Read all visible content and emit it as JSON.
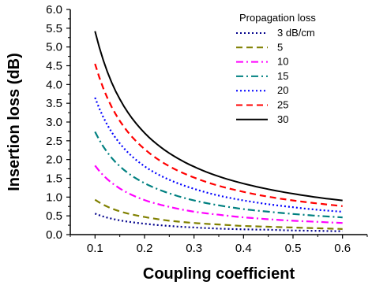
{
  "chart_data": {
    "type": "line",
    "xlabel": "Coupling coefficient",
    "ylabel": "Insertion loss (dB)",
    "xlim": [
      0.05,
      0.65
    ],
    "ylim": [
      0.0,
      6.0
    ],
    "xticks": [
      "0.1",
      "0.2",
      "0.3",
      "0.4",
      "0.5",
      "0.6"
    ],
    "yticks": [
      "0.0",
      "0.5",
      "1.0",
      "1.5",
      "2.0",
      "2.5",
      "3.0",
      "3.5",
      "4.0",
      "4.5",
      "5.0",
      "5.5",
      "6.0"
    ],
    "grid": false,
    "legend": {
      "title": "Propagation loss",
      "position": "top-right"
    },
    "x": [
      0.1,
      0.15,
      0.2,
      0.25,
      0.3,
      0.35,
      0.4,
      0.45,
      0.5,
      0.55,
      0.6
    ],
    "series": [
      {
        "name": "3 dB/cm",
        "color": "#00008b",
        "dash": "dot",
        "values": [
          0.56,
          0.38,
          0.29,
          0.23,
          0.19,
          0.16,
          0.14,
          0.13,
          0.11,
          0.1,
          0.09
        ]
      },
      {
        "name": "5",
        "color": "#808000",
        "dash": "dash",
        "values": [
          0.93,
          0.62,
          0.47,
          0.37,
          0.31,
          0.27,
          0.23,
          0.21,
          0.19,
          0.17,
          0.15
        ]
      },
      {
        "name": "10",
        "color": "#ff00ff",
        "dash": "dashdot",
        "values": [
          1.84,
          1.23,
          0.92,
          0.74,
          0.61,
          0.53,
          0.46,
          0.41,
          0.37,
          0.34,
          0.31
        ]
      },
      {
        "name": "15",
        "color": "#008080",
        "dash": "dashdot",
        "values": [
          2.74,
          1.82,
          1.37,
          1.1,
          0.91,
          0.78,
          0.68,
          0.61,
          0.55,
          0.5,
          0.46
        ]
      },
      {
        "name": "20",
        "color": "#0000ff",
        "dash": "dot",
        "values": [
          3.65,
          2.43,
          1.82,
          1.46,
          1.22,
          1.04,
          0.91,
          0.81,
          0.73,
          0.66,
          0.61
        ]
      },
      {
        "name": "25",
        "color": "#ff0000",
        "dash": "dash",
        "values": [
          4.55,
          3.03,
          2.28,
          1.82,
          1.52,
          1.3,
          1.14,
          1.01,
          0.91,
          0.83,
          0.76
        ]
      },
      {
        "name": "30",
        "color": "#000000",
        "dash": "solid",
        "values": [
          5.42,
          3.61,
          2.71,
          2.17,
          1.81,
          1.55,
          1.36,
          1.21,
          1.09,
          0.99,
          0.91
        ]
      }
    ]
  }
}
